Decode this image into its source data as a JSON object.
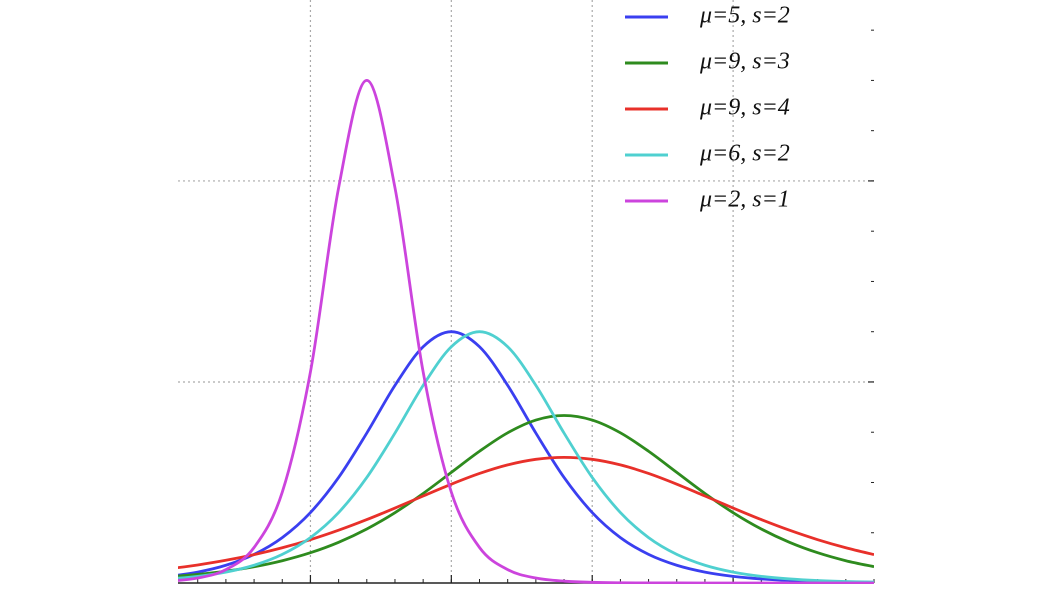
{
  "chart_data": {
    "type": "line",
    "x": [
      -5,
      -4,
      -3,
      -2,
      -1,
      0,
      1,
      2,
      3,
      4,
      5,
      6,
      7,
      8,
      9,
      10,
      11,
      12,
      13,
      14,
      15,
      16,
      17,
      18,
      19,
      20
    ],
    "series": [
      {
        "name": "μ=5, s=2",
        "color": "#3a3ff0",
        "values": [
          0.00332,
          0.00543,
          0.00883,
          0.01423,
          0.02259,
          0.03505,
          0.0525,
          0.07458,
          0.09831,
          0.1175,
          0.125,
          0.1175,
          0.09831,
          0.07458,
          0.0525,
          0.03505,
          0.02259,
          0.01423,
          0.00883,
          0.00543,
          0.00332,
          0.00203,
          0.00123,
          0.00075,
          0.00046,
          0.00028
        ]
      },
      {
        "name": "μ=9, s=3",
        "color": "#2e8b1e",
        "values": [
          0.00308,
          0.00426,
          0.00589,
          0.0081,
          0.01109,
          0.01506,
          0.02025,
          0.02686,
          0.035,
          0.04454,
          0.05503,
          0.06554,
          0.07472,
          0.08106,
          0.08333,
          0.08106,
          0.07472,
          0.06554,
          0.05503,
          0.04454,
          0.035,
          0.02686,
          0.02025,
          0.01506,
          0.01109,
          0.0081
        ]
      },
      {
        "name": "μ=9, s=4",
        "color": "#e8302a",
        "values": [
          0.00711,
          0.00898,
          0.01129,
          0.01412,
          0.01753,
          0.02156,
          0.02625,
          0.03153,
          0.03729,
          0.04328,
          0.04915,
          0.05448,
          0.05875,
          0.06153,
          0.0625,
          0.06153,
          0.05875,
          0.05448,
          0.04915,
          0.04328,
          0.03729,
          0.03153,
          0.02625,
          0.02156,
          0.01753,
          0.01412
        ]
      },
      {
        "name": "μ=6, s=2",
        "color": "#4fd0d0",
        "values": [
          0.00203,
          0.00332,
          0.00543,
          0.00883,
          0.01423,
          0.02259,
          0.03505,
          0.0525,
          0.07458,
          0.09831,
          0.1175,
          0.125,
          0.1175,
          0.09831,
          0.07458,
          0.0525,
          0.03505,
          0.02259,
          0.01423,
          0.00883,
          0.00543,
          0.00332,
          0.00203,
          0.00123,
          0.00075,
          0.00046
        ]
      },
      {
        "name": "μ=2, s=1",
        "color": "#cc44dd",
        "values": [
          0.00091,
          0.00247,
          0.00665,
          0.01766,
          0.04518,
          0.10499,
          0.19661,
          0.25,
          0.19661,
          0.10499,
          0.04518,
          0.01766,
          0.00665,
          0.00247,
          0.00091,
          0.00034,
          0.00012,
          5e-05,
          2e-05,
          1e-05,
          0,
          0,
          0,
          0,
          0,
          0
        ]
      }
    ],
    "xlim": [
      -4.7,
      20
    ],
    "ylim": [
      0,
      0.29
    ],
    "xticks": [
      0,
      5,
      10,
      15
    ],
    "yticks": [
      0.1,
      0.2
    ],
    "grid": true,
    "legend": "upper right"
  }
}
